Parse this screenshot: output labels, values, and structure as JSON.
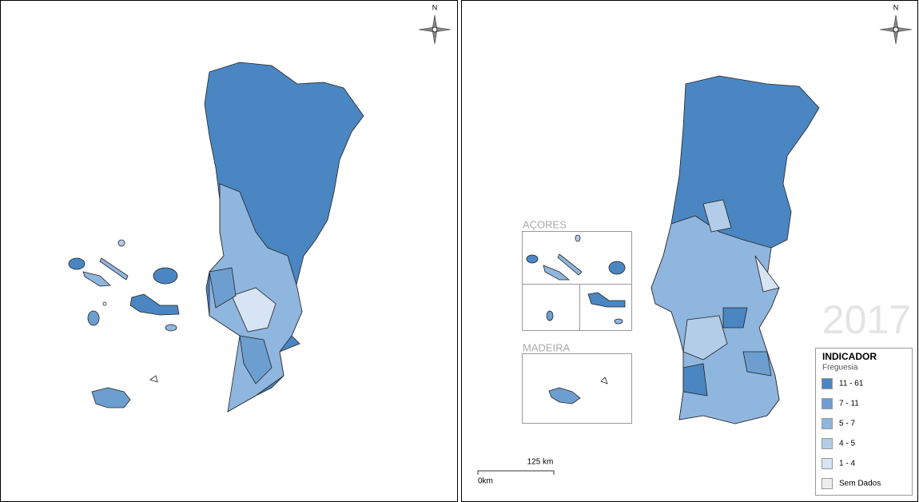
{
  "left_panel": {
    "north": "N"
  },
  "right_panel": {
    "north": "N",
    "inset_azores": "AÇORES",
    "inset_madeira": "MADEIRA",
    "year": "2017",
    "legend": {
      "title": "INDICADOR",
      "subtitle": "Freguesia",
      "items": [
        {
          "label": "11 - 61",
          "color": "#4a86c2"
        },
        {
          "label": "7 - 11",
          "color": "#6c9fd0"
        },
        {
          "label": "5 - 7",
          "color": "#8fb6de"
        },
        {
          "label": "4 - 5",
          "color": "#b3cde8"
        },
        {
          "label": "1 - 4",
          "color": "#d6e4f3"
        },
        {
          "label": "Sem Dados",
          "color": "#eeeeee"
        }
      ]
    },
    "scale": {
      "distance": "125 km",
      "origin": "0km"
    }
  }
}
